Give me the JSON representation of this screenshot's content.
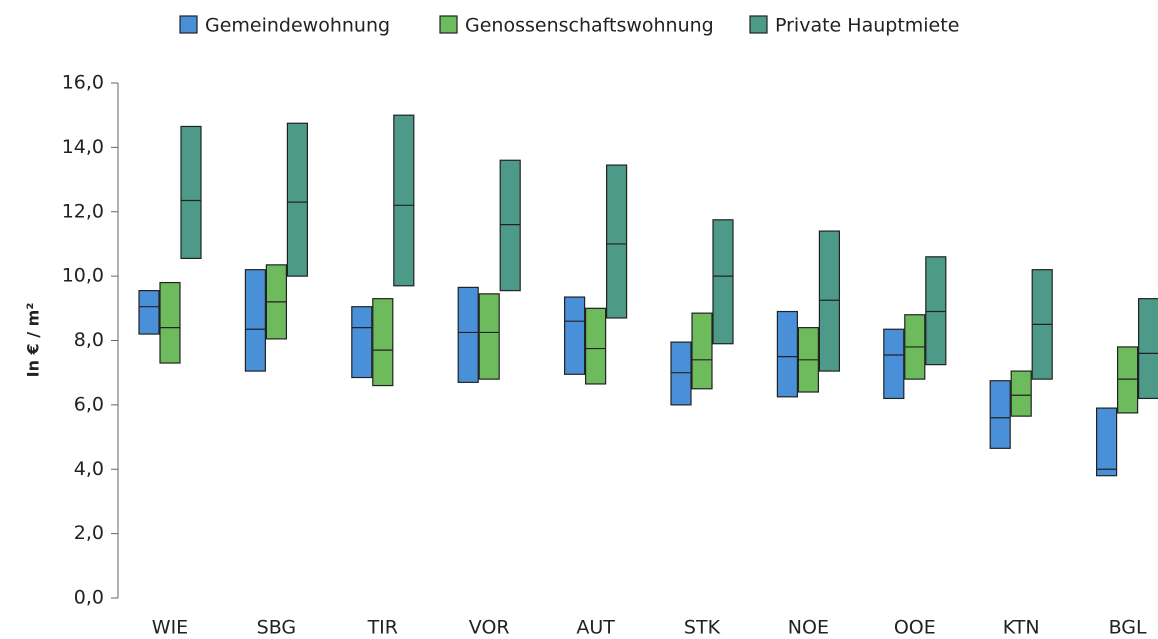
{
  "chart_data": {
    "type": "range_bar",
    "categories": [
      "WIE",
      "SBG",
      "TIR",
      "VOR",
      "AUT",
      "STK",
      "NOE",
      "OOE",
      "KTN",
      "BGL"
    ],
    "series": [
      {
        "name": "Gemeindewohnung",
        "color": "#4a90d9",
        "low": [
          8.2,
          7.05,
          6.85,
          6.7,
          6.95,
          6.0,
          6.25,
          6.2,
          4.65,
          3.8
        ],
        "median": [
          9.05,
          8.35,
          8.4,
          8.25,
          8.6,
          7.0,
          7.5,
          7.55,
          5.6,
          4.0
        ],
        "high": [
          9.55,
          10.2,
          9.05,
          9.65,
          9.35,
          7.95,
          8.9,
          8.35,
          6.75,
          5.9
        ]
      },
      {
        "name": "Genossenschaftswohnung",
        "color": "#6dbb5d",
        "low": [
          7.3,
          8.05,
          6.6,
          6.8,
          6.65,
          6.5,
          6.4,
          6.8,
          5.65,
          5.75
        ],
        "median": [
          8.4,
          9.2,
          7.7,
          8.25,
          7.75,
          7.4,
          7.4,
          7.8,
          6.3,
          6.8
        ],
        "high": [
          9.8,
          10.35,
          9.3,
          9.45,
          9.0,
          8.85,
          8.4,
          8.8,
          7.05,
          7.8
        ]
      },
      {
        "name": "Private Hauptmiete",
        "color": "#4e9a88",
        "low": [
          10.55,
          10.0,
          9.7,
          9.55,
          8.7,
          7.9,
          7.05,
          7.25,
          6.8,
          6.2
        ],
        "median": [
          12.35,
          12.3,
          12.2,
          11.6,
          11.0,
          10.0,
          9.25,
          8.9,
          8.5,
          7.6
        ],
        "high": [
          14.65,
          14.75,
          15.0,
          13.6,
          13.45,
          11.75,
          11.4,
          10.6,
          10.2,
          9.3
        ]
      }
    ],
    "y_label": "In € / m²",
    "ylim": [
      0,
      16
    ],
    "yticks": [
      {
        "value": 0,
        "label": "0,0"
      },
      {
        "value": 2,
        "label": "2,0"
      },
      {
        "value": 4,
        "label": "4,0"
      },
      {
        "value": 6,
        "label": "6,0"
      },
      {
        "value": 8,
        "label": "8,0"
      },
      {
        "value": 10,
        "label": "10,0"
      },
      {
        "value": 12,
        "label": "12,0"
      },
      {
        "value": 14,
        "label": "14,0"
      },
      {
        "value": 16,
        "label": "16,0"
      }
    ],
    "legend": "top",
    "grid": false
  }
}
